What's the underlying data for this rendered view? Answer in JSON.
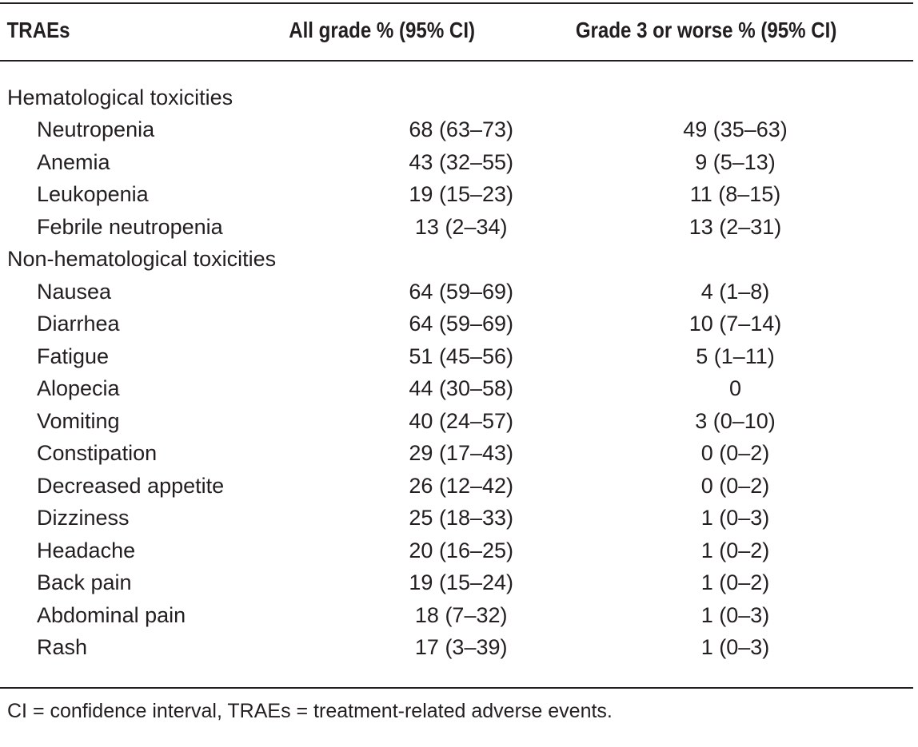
{
  "table": {
    "headers": [
      "TRAEs",
      "All grade % (95% CI)",
      "Grade 3 or worse % (95% CI)"
    ],
    "rows": [
      {
        "type": "group",
        "label": "Hematological toxicities",
        "all_grade": "",
        "grade3": ""
      },
      {
        "type": "item",
        "label": "Neutropenia",
        "all_grade": "68 (63–73)",
        "grade3": "49 (35–63)"
      },
      {
        "type": "item",
        "label": "Anemia",
        "all_grade": "43 (32–55)",
        "grade3": "9 (5–13)"
      },
      {
        "type": "item",
        "label": "Leukopenia",
        "all_grade": "19 (15–23)",
        "grade3": "11 (8–15)"
      },
      {
        "type": "item",
        "label": "Febrile neutropenia",
        "all_grade": "13 (2–34)",
        "grade3": "13 (2–31)"
      },
      {
        "type": "group",
        "label": "Non-hematological toxicities",
        "all_grade": "",
        "grade3": ""
      },
      {
        "type": "item",
        "label": "Nausea",
        "all_grade": "64 (59–69)",
        "grade3": "4 (1–8)"
      },
      {
        "type": "item",
        "label": "Diarrhea",
        "all_grade": "64 (59–69)",
        "grade3": "10 (7–14)"
      },
      {
        "type": "item",
        "label": "Fatigue",
        "all_grade": "51 (45–56)",
        "grade3": "5 (1–11)"
      },
      {
        "type": "item",
        "label": "Alopecia",
        "all_grade": "44 (30–58)",
        "grade3": "0"
      },
      {
        "type": "item",
        "label": "Vomiting",
        "all_grade": "40 (24–57)",
        "grade3": "3 (0–10)"
      },
      {
        "type": "item",
        "label": "Constipation",
        "all_grade": "29 (17–43)",
        "grade3": "0 (0–2)"
      },
      {
        "type": "item",
        "label": "Decreased appetite",
        "all_grade": "26 (12–42)",
        "grade3": "0 (0–2)"
      },
      {
        "type": "item",
        "label": "Dizziness",
        "all_grade": "25 (18–33)",
        "grade3": "1 (0–3)"
      },
      {
        "type": "item",
        "label": "Headache",
        "all_grade": "20 (16–25)",
        "grade3": "1 (0–2)"
      },
      {
        "type": "item",
        "label": "Back pain",
        "all_grade": "19 (15–24)",
        "grade3": "1 (0–2)"
      },
      {
        "type": "item",
        "label": "Abdominal pain",
        "all_grade": "18 (7–32)",
        "grade3": "1 (0–3)"
      },
      {
        "type": "item",
        "label": "Rash",
        "all_grade": "17 (3–39)",
        "grade3": "1 (0–3)"
      }
    ]
  },
  "footnote": "CI = confidence interval, TRAEs = treatment-related adverse events."
}
